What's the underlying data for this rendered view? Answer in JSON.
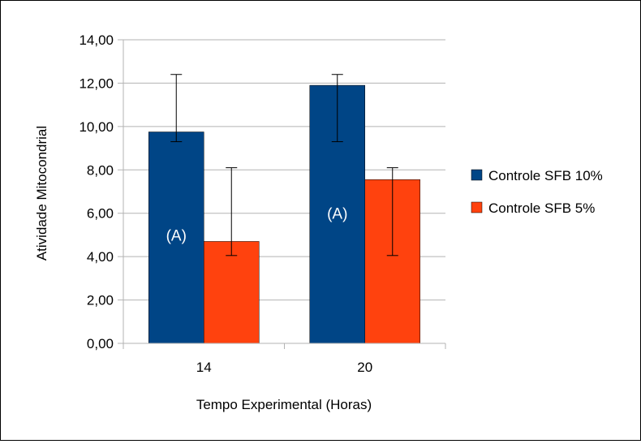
{
  "chart_data": {
    "type": "bar",
    "title": "",
    "xlabel": "Tempo Experimental (Horas)",
    "ylabel": "Atividade Mitocondrial",
    "categories": [
      "14",
      "20"
    ],
    "ylim": [
      0,
      14
    ],
    "yticks": [
      0,
      2,
      4,
      6,
      8,
      10,
      12,
      14
    ],
    "ytick_labels": [
      "0,00",
      "2,00",
      "4,00",
      "6,00",
      "8,00",
      "10,00",
      "12,00",
      "14,00"
    ],
    "grid": true,
    "legend_position": "right",
    "series": [
      {
        "name": "Controle SFB 10%",
        "color": "#004586",
        "values": [
          9.75,
          11.9
        ],
        "error_low": [
          9.3,
          9.3
        ],
        "error_high": [
          12.4,
          12.4
        ]
      },
      {
        "name": "Controle SFB 5%",
        "color": "#ff420e",
        "values": [
          4.7,
          7.55
        ],
        "error_low": [
          4.05,
          4.05
        ],
        "error_high": [
          8.1,
          8.1
        ]
      }
    ],
    "annotations": [
      {
        "text": "(A)",
        "category_index": 0,
        "series_index": 0,
        "y": 5.0
      },
      {
        "text": "(A)",
        "category_index": 1,
        "series_index": 0,
        "y": 6.0
      }
    ]
  }
}
